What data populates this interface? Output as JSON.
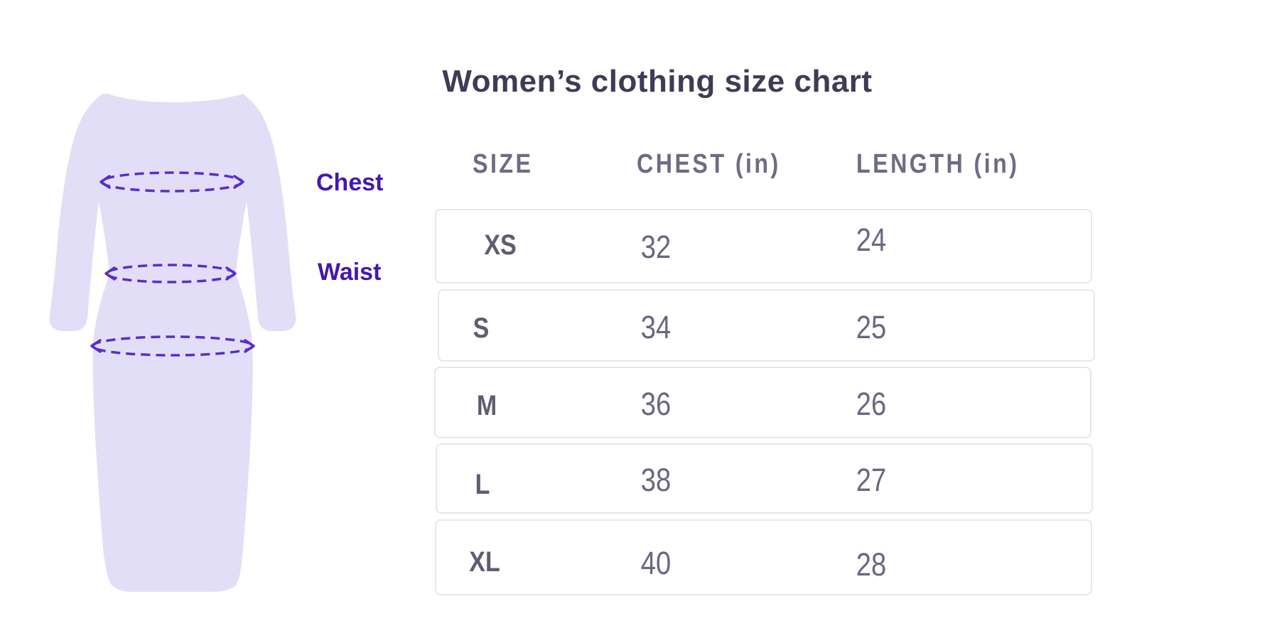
{
  "title": {
    "text": "Women’s clothing size chart"
  },
  "illustration": {
    "type": "dress-with-measurement-rings",
    "labels": [
      {
        "text": "Chest"
      },
      {
        "text": "Waist"
      }
    ],
    "measure_rings": [
      "chest",
      "waist",
      "hip"
    ],
    "colors": {
      "dress_fill": "#e2def8",
      "dashed_ring": "#5a2ec5",
      "label_text": "#4517ad"
    }
  },
  "table": {
    "headers": [
      {
        "label": "SIZE"
      },
      {
        "label": "CHEST (in)"
      },
      {
        "label": "LENGTH (in)"
      }
    ],
    "rows": [
      {
        "size": "XS",
        "chest": "32",
        "length": "24"
      },
      {
        "size": "S",
        "chest": "34",
        "length": "25"
      },
      {
        "size": "M",
        "chest": "36",
        "length": "26"
      },
      {
        "size": "L",
        "chest": "38",
        "length": "27"
      },
      {
        "size": "XL",
        "chest": "40",
        "length": "28"
      }
    ],
    "colors": {
      "title_text": "#3e3c55",
      "header_text": "#6e6b85",
      "size_text": "#5f5c72",
      "value_text": "#6a6780",
      "row_border": "#e8e6ec"
    }
  },
  "chart_data": {
    "type": "table",
    "title": "Women’s clothing size chart",
    "columns": [
      "SIZE",
      "CHEST (in)",
      "LENGTH (in)"
    ],
    "rows": [
      [
        "XS",
        32,
        24
      ],
      [
        "S",
        34,
        25
      ],
      [
        "M",
        36,
        26
      ],
      [
        "L",
        38,
        27
      ],
      [
        "XL",
        40,
        28
      ]
    ],
    "annotations": [
      "Chest",
      "Waist"
    ],
    "units": "inches"
  }
}
